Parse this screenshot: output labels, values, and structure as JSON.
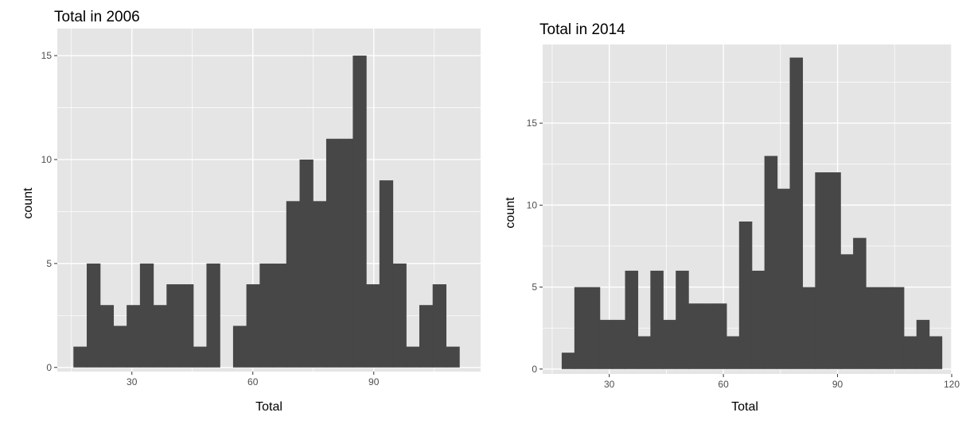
{
  "colors": {
    "panel_background": "#e5e5e5",
    "grid_line": "#ffffff",
    "bar_fill": "#474747",
    "tick_text": "#4d4d4d"
  },
  "chart_data": [
    {
      "type": "bar",
      "title": "Total in 2006",
      "xlabel": "Total",
      "ylabel": "count",
      "grid": true,
      "legend": "none",
      "xlim": [
        11.5,
        116.5
      ],
      "ylim": [
        -0.2,
        16.3
      ],
      "xticks": [
        30,
        60,
        90
      ],
      "yticks": [
        0,
        5,
        10,
        15
      ],
      "xtick_labels": [
        "30",
        "60",
        "90"
      ],
      "ytick_labels": [
        "0",
        "5",
        "10",
        "15"
      ],
      "bin_width": 3.3,
      "bin_start": 15.5,
      "counts": [
        1,
        5,
        3,
        2,
        3,
        5,
        3,
        4,
        4,
        1,
        5,
        0,
        2,
        4,
        5,
        5,
        8,
        10,
        8,
        11,
        11,
        15,
        4,
        9,
        5,
        1,
        3,
        4,
        1
      ]
    },
    {
      "type": "bar",
      "title": "Total in 2014",
      "xlabel": "Total",
      "ylabel": "count",
      "grid": true,
      "legend": "none",
      "xlim": [
        12.5,
        120
      ],
      "ylim": [
        -0.3,
        19.8
      ],
      "xticks": [
        30,
        60,
        90,
        120
      ],
      "yticks": [
        0,
        5,
        10,
        15
      ],
      "xtick_labels": [
        "30",
        "60",
        "90",
        "120"
      ],
      "ytick_labels": [
        "0",
        "5",
        "10",
        "15"
      ],
      "bin_width": 3.33,
      "bin_start": 17.5,
      "counts": [
        1,
        5,
        5,
        3,
        3,
        6,
        2,
        6,
        3,
        6,
        4,
        4,
        4,
        2,
        9,
        6,
        13,
        11,
        19,
        5,
        12,
        12,
        7,
        8,
        5,
        5,
        5,
        2,
        3,
        2
      ]
    }
  ]
}
